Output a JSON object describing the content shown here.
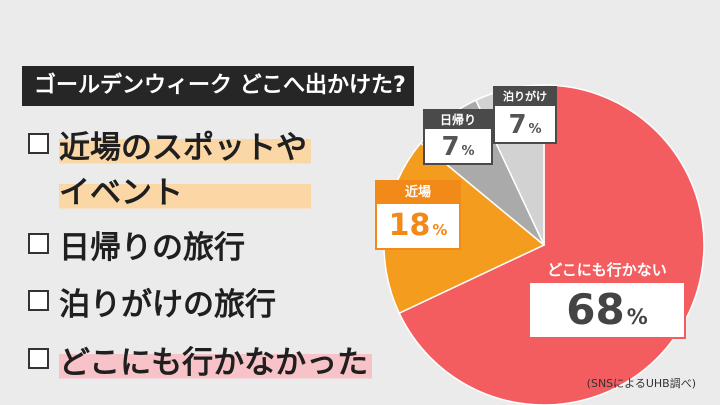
{
  "title": "ゴールデンウィーク どこへ出かけた?",
  "options": {
    "o1_line1": "近場のスポットや",
    "o1_line2": "イベント",
    "o2": "日帰りの旅行",
    "o3": "泊りがけの旅行",
    "o4": "どこにも行かなかった"
  },
  "chart_data": {
    "type": "pie",
    "title": "ゴールデンウィーク どこへ出かけた?",
    "slices": [
      {
        "label": "どこにも行かない",
        "value": 68,
        "value_text": "68",
        "color": "#f45d60",
        "header_color": "#f45d60"
      },
      {
        "label": "近場",
        "value": 18,
        "value_text": "18",
        "color": "#f39c1e",
        "header_color": "#f28a1a"
      },
      {
        "label": "日帰り",
        "value": 7,
        "value_text": "7",
        "color": "#aaaaaa",
        "header_color": "#4a4a4a"
      },
      {
        "label": "泊りがけ",
        "value": 7,
        "value_text": "7",
        "color": "#d2d2d2",
        "header_color": "#4a4a4a"
      }
    ],
    "unit": "%"
  },
  "source": "(SNSによるUHB調べ)"
}
